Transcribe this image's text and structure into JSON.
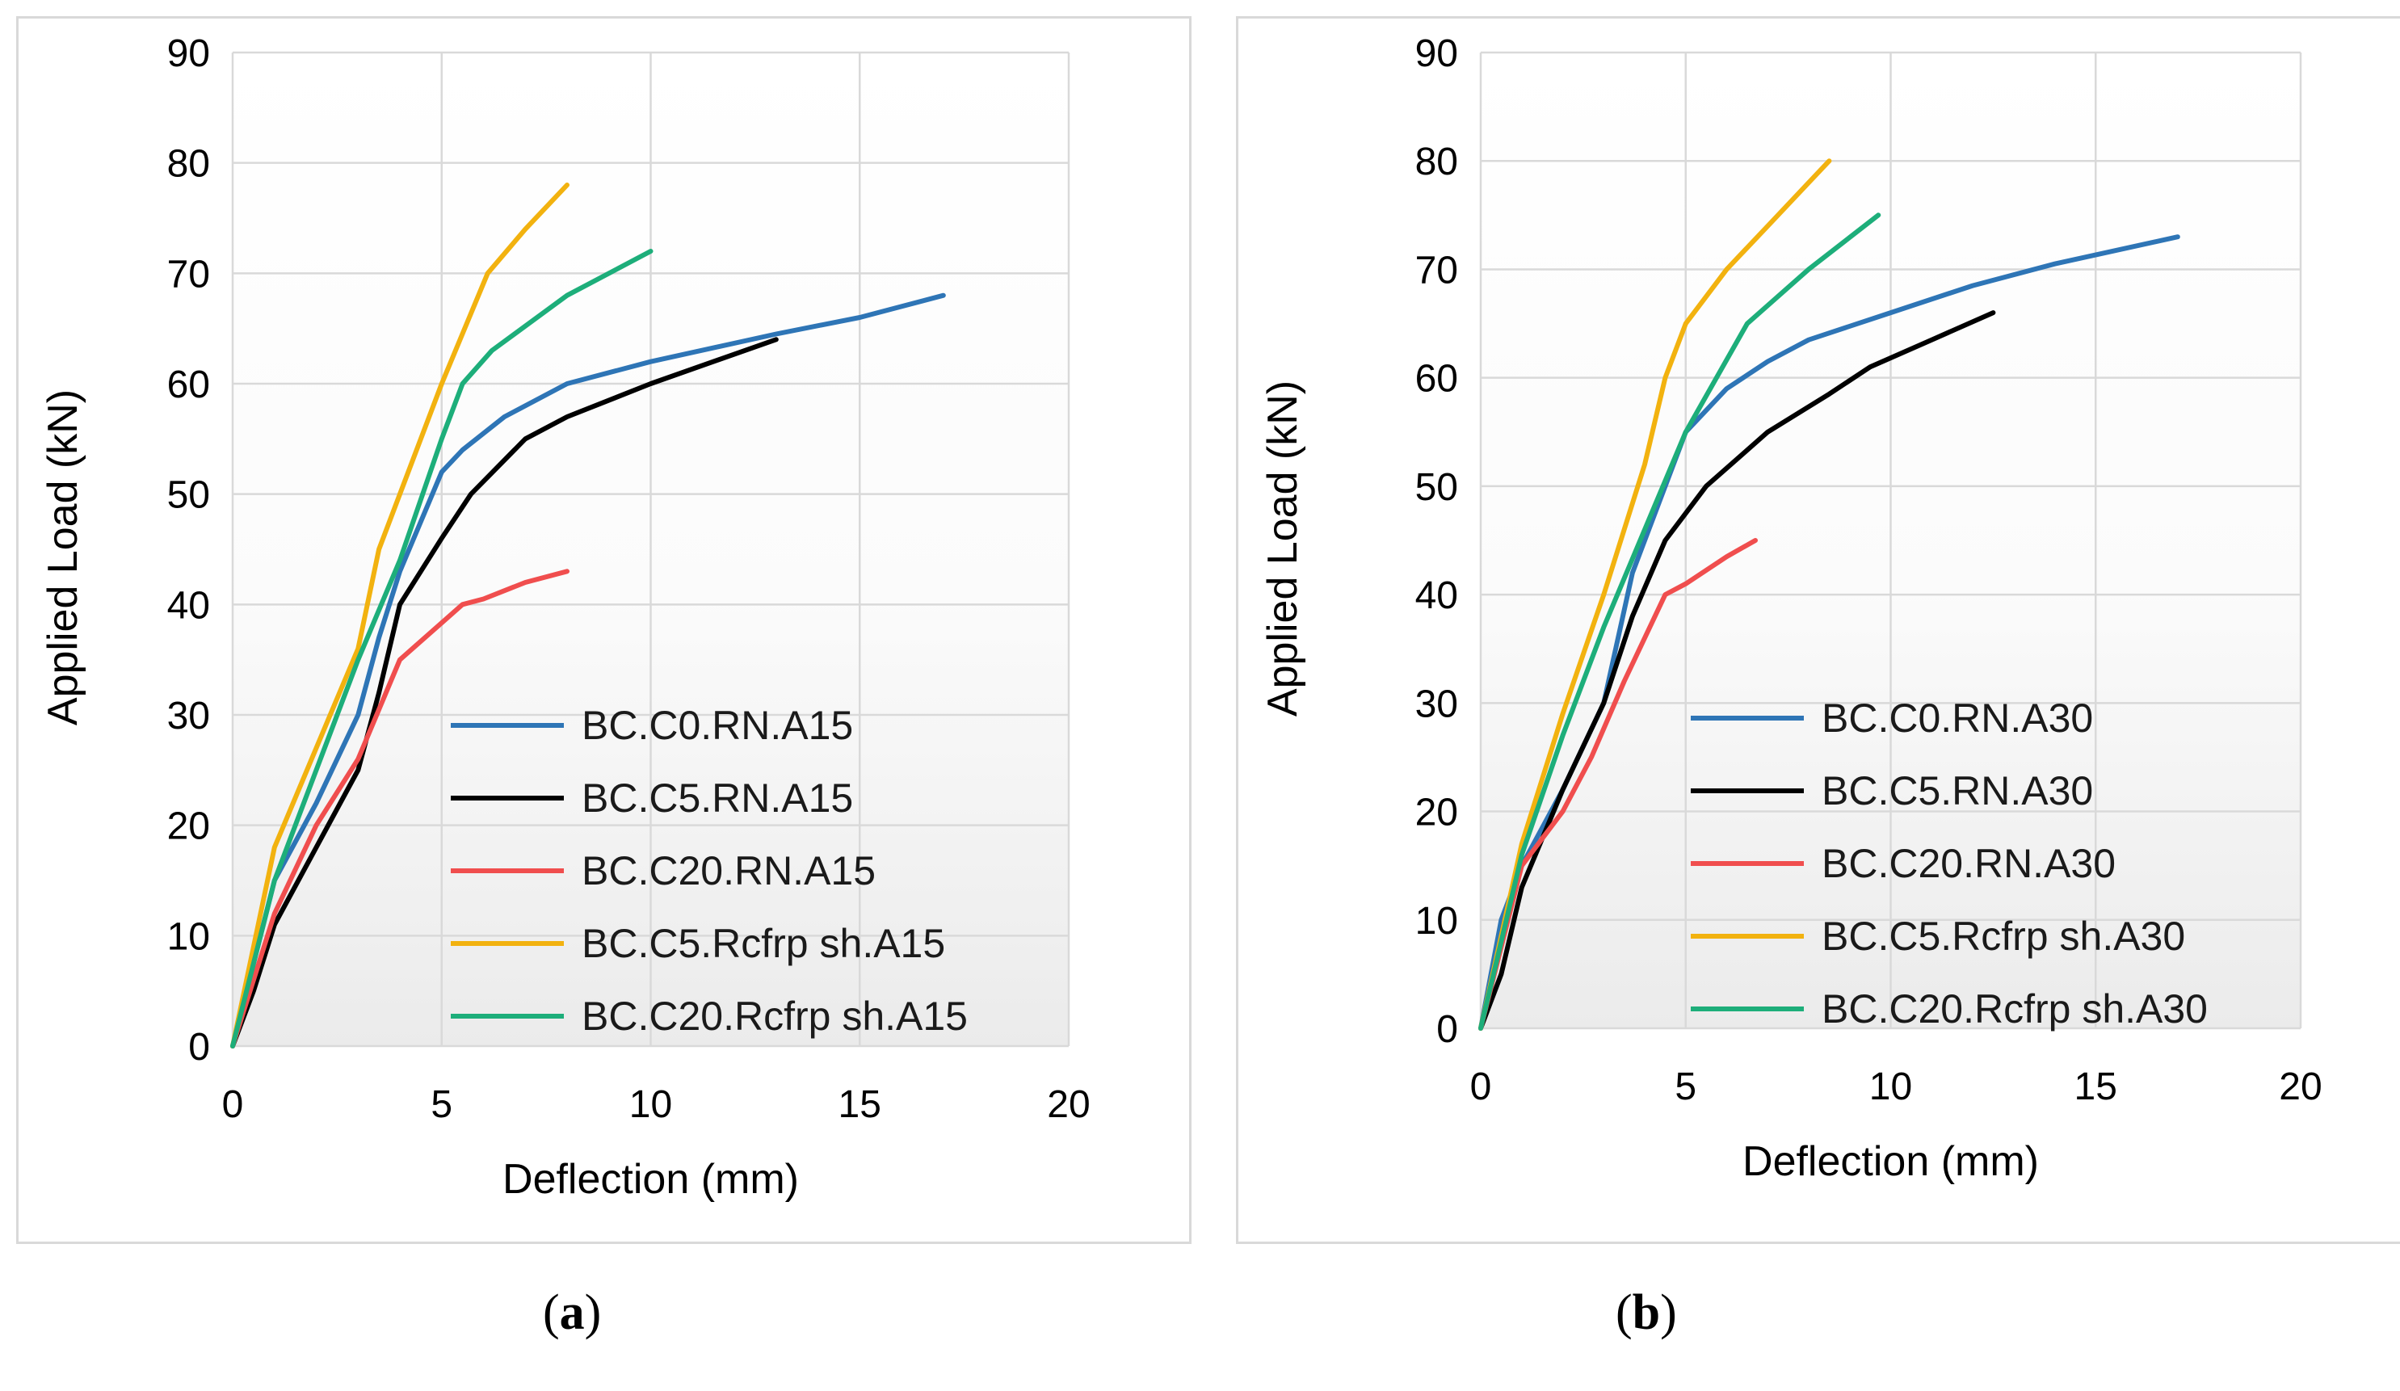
{
  "chart_data": [
    {
      "type": "line",
      "xlabel": "Deflection (mm)",
      "ylabel": "Applied Load (kN)",
      "xlim": [
        0,
        20
      ],
      "ylim": [
        0,
        90
      ],
      "xticks": [
        0,
        5,
        10,
        15,
        20
      ],
      "yticks": [
        0,
        10,
        20,
        30,
        40,
        50,
        60,
        70,
        80,
        90
      ],
      "grid": true,
      "legend_position": "bottom-right",
      "series": [
        {
          "name": "BC.C0.RN.A15",
          "color": "#2E75B6",
          "x": [
            0,
            1,
            2,
            3,
            3.5,
            4,
            5,
            5.5,
            6.5,
            8,
            10,
            13,
            15,
            17
          ],
          "y": [
            0,
            15,
            22,
            30,
            37,
            43,
            52,
            54,
            57,
            60,
            62,
            64.5,
            66,
            68
          ]
        },
        {
          "name": "BC.C5.RN.A15",
          "color": "#000000",
          "x": [
            0,
            0.5,
            1,
            2,
            3,
            3.5,
            4,
            5,
            5.7,
            7,
            8,
            10,
            13
          ],
          "y": [
            0,
            5,
            11,
            18,
            25,
            32,
            40,
            46,
            50,
            55,
            57,
            60,
            64
          ]
        },
        {
          "name": "BC.C20.RN.A15",
          "color": "#F04E4E",
          "x": [
            0,
            1,
            2,
            3,
            4,
            5.5,
            6,
            7,
            8
          ],
          "y": [
            0,
            12,
            20,
            26,
            35,
            40,
            40.5,
            42,
            43
          ]
        },
        {
          "name": "BC.C5.Rcfrp sh.A15",
          "color": "#F2B20F",
          "x": [
            0,
            1,
            2,
            3,
            3.5,
            4,
            5,
            6.1,
            7,
            8
          ],
          "y": [
            0,
            18,
            27,
            36,
            45,
            50,
            60,
            70,
            74,
            78
          ]
        },
        {
          "name": "BC.C20.Rcfrp sh.A15",
          "color": "#1DAE7A",
          "x": [
            0,
            1,
            2,
            3,
            4,
            5,
            5.5,
            6.2,
            8,
            10
          ],
          "y": [
            0,
            15,
            25,
            35,
            44,
            55,
            60,
            63,
            68,
            72
          ]
        }
      ]
    },
    {
      "type": "line",
      "xlabel": "Deflection (mm)",
      "ylabel": "Applied Load (kN)",
      "xlim": [
        0,
        20
      ],
      "ylim": [
        0,
        90
      ],
      "xticks": [
        0,
        5,
        10,
        15,
        20
      ],
      "yticks": [
        0,
        10,
        20,
        30,
        40,
        50,
        60,
        70,
        80,
        90
      ],
      "grid": true,
      "legend_position": "bottom-right",
      "series": [
        {
          "name": "BC.C0.RN.A30",
          "color": "#2E75B6",
          "x": [
            0,
            0.5,
            1,
            2,
            3,
            3.7,
            4.5,
            5,
            6,
            7,
            8,
            10,
            12,
            14,
            17
          ],
          "y": [
            0,
            10,
            15,
            22,
            30,
            42,
            50,
            55,
            59,
            61.5,
            63.5,
            66,
            68.5,
            70.5,
            73
          ]
        },
        {
          "name": "BC.C5.RN.A30",
          "color": "#000000",
          "x": [
            0,
            0.5,
            1,
            2,
            3,
            3.7,
            4.5,
            5.5,
            7,
            8.5,
            9.5,
            11,
            12.5
          ],
          "y": [
            0,
            5,
            13,
            22,
            30,
            38,
            45,
            50,
            55,
            58.5,
            61,
            63.5,
            66
          ]
        },
        {
          "name": "BC.C20.RN.A30",
          "color": "#F04E4E",
          "x": [
            0,
            1,
            2,
            2.7,
            3.5,
            4.5,
            5,
            6,
            6.7
          ],
          "y": [
            0,
            15,
            20,
            25,
            32,
            40,
            41,
            43.5,
            45
          ]
        },
        {
          "name": "BC.C5.Rcfrp sh.A30",
          "color": "#F2B20F",
          "x": [
            0,
            1,
            2,
            3,
            4,
            4.5,
            5,
            6,
            7,
            8,
            8.5
          ],
          "y": [
            0,
            17,
            29,
            40,
            52,
            60,
            65,
            70,
            74,
            78,
            80
          ]
        },
        {
          "name": "BC.C20.Rcfrp sh.A30",
          "color": "#1DAE7A",
          "x": [
            0,
            1,
            2,
            3,
            4,
            5,
            6.5,
            8,
            9.7
          ],
          "y": [
            0,
            16,
            27,
            37,
            46,
            55,
            65,
            70,
            75
          ]
        }
      ]
    }
  ],
  "captions": [
    "a",
    "b"
  ]
}
